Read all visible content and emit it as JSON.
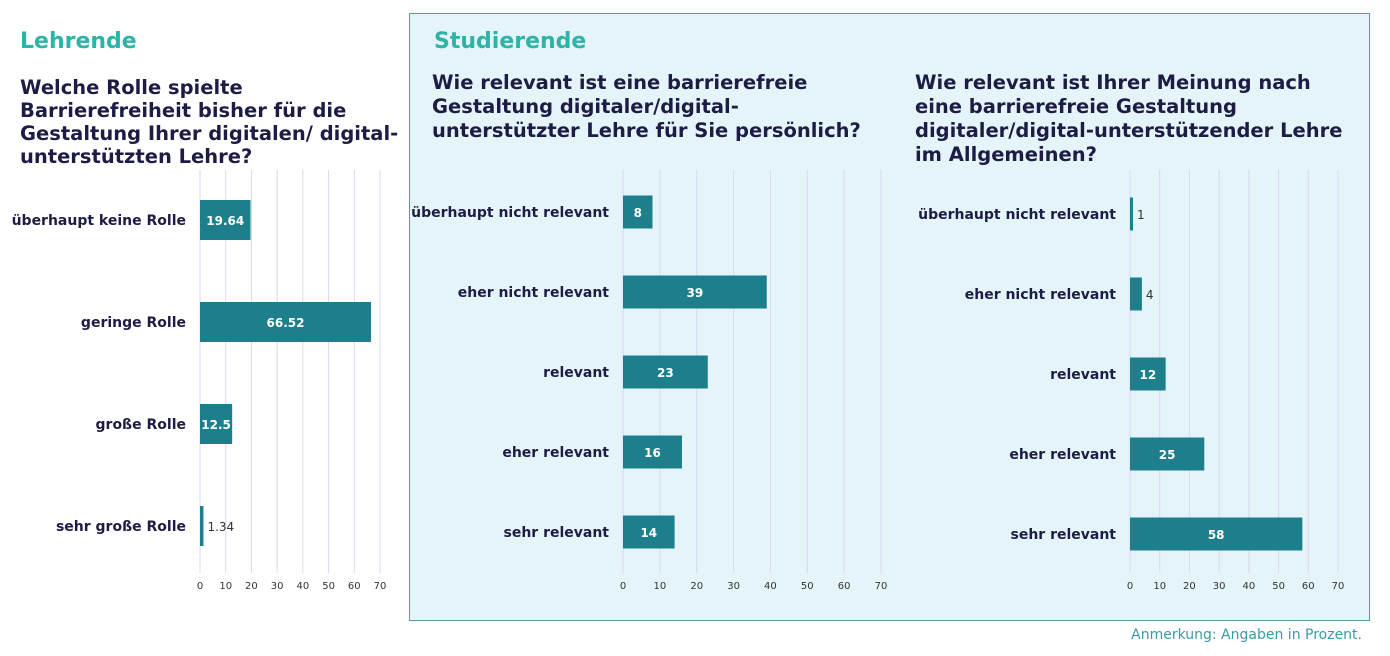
{
  "lehrende": {
    "heading": "Lehrende"
  },
  "studierende": {
    "heading": "Studierende"
  },
  "footnote": "Anmerkung: Angaben in Prozent.",
  "colors": {
    "bar": "#1e7f8c",
    "heading": "#2fb3a6",
    "question": "#1c1c45",
    "gridline": "#d9d9ee",
    "panel_bg": "#e4f4f8"
  },
  "chart_data": [
    {
      "type": "bar",
      "orientation": "horizontal",
      "title": "Welche Rolle spielte Barrierefreiheit bisher für die Gestaltung Ihrer digitalen/ digital-unterstützten Lehre?",
      "categories": [
        "überhaupt keine Rolle",
        "geringe Rolle",
        "große Rolle",
        "sehr große Rolle"
      ],
      "values": [
        19.64,
        66.52,
        12.5,
        1.34
      ],
      "labels": [
        "19.64",
        "66.52",
        "12.5",
        "1.34"
      ],
      "xlim": [
        0,
        70
      ],
      "xticks": [
        0,
        10,
        20,
        30,
        40,
        50,
        60,
        70
      ],
      "grid": true
    },
    {
      "type": "bar",
      "orientation": "horizontal",
      "title": "Wie relevant ist eine barrierefreie Gestaltung digitaler/digital-unterstützter Lehre für Sie persönlich?",
      "categories": [
        "überhaupt nicht relevant",
        "eher nicht relevant",
        "relevant",
        "eher relevant",
        "sehr relevant"
      ],
      "values": [
        8,
        39,
        23,
        16,
        14
      ],
      "labels": [
        "8",
        "39",
        "23",
        "16",
        "14"
      ],
      "xlim": [
        0,
        70
      ],
      "xticks": [
        0,
        10,
        20,
        30,
        40,
        50,
        60,
        70
      ],
      "grid": true
    },
    {
      "type": "bar",
      "orientation": "horizontal",
      "title": "Wie relevant ist Ihrer Meinung nach eine barrierefreie Gestaltung digitaler/digital-unterstützender Lehre im Allgemeinen?",
      "categories": [
        "überhaupt nicht relevant",
        "eher nicht relevant",
        "relevant",
        "eher relevant",
        "sehr relevant"
      ],
      "values": [
        1,
        4,
        12,
        25,
        58
      ],
      "labels": [
        "1",
        "4",
        "12",
        "25",
        "58"
      ],
      "xlim": [
        0,
        70
      ],
      "xticks": [
        0,
        10,
        20,
        30,
        40,
        50,
        60,
        70
      ],
      "grid": true
    }
  ]
}
